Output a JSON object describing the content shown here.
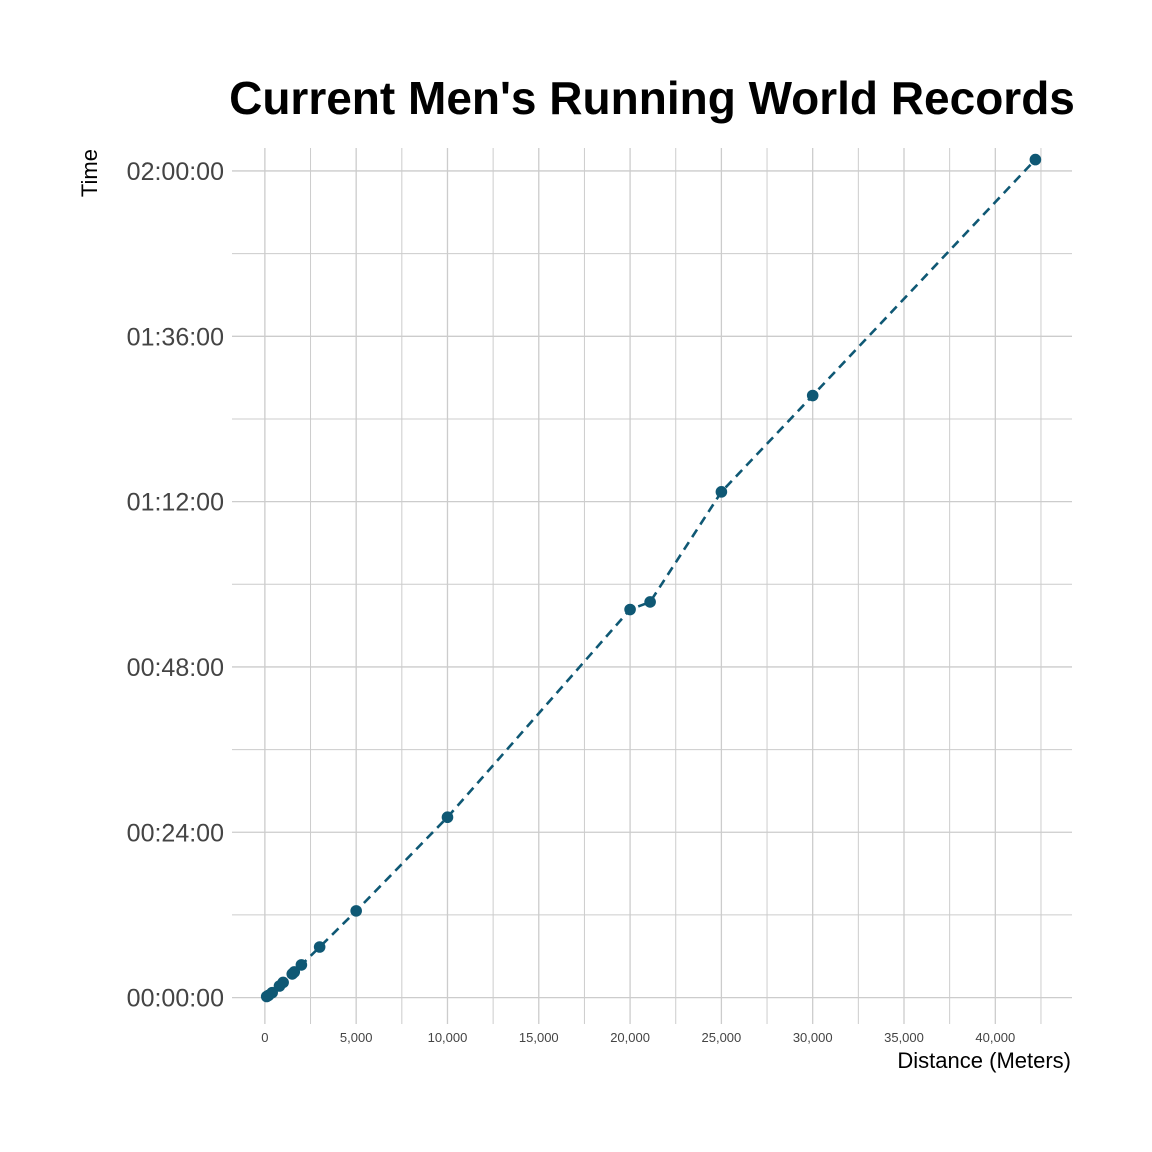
{
  "chart_data": {
    "type": "scatter",
    "title": "Current Men's Running World Records",
    "xlabel": "Distance (Meters)",
    "ylabel": "Time",
    "xlim": [
      -1800,
      44200
    ],
    "ylim": [
      -230,
      7400
    ],
    "x_ticks": [
      0,
      5000,
      10000,
      15000,
      20000,
      25000,
      30000,
      35000,
      40000
    ],
    "x_tick_labels": [
      "0",
      "5,000",
      "10,000",
      "15,000",
      "20,000",
      "25,000",
      "30,000",
      "35,000",
      "40,000"
    ],
    "y_ticks": [
      0,
      1440,
      2880,
      4320,
      5760,
      7200
    ],
    "y_tick_labels": [
      "00:00:00",
      "00:24:00",
      "00:48:00",
      "01:12:00",
      "01:36:00",
      "02:00:00"
    ],
    "grid": true,
    "line_style": "dashed",
    "series": [
      {
        "color": "#0f5874",
        "points": [
          {
            "x": 100,
            "y": 9.58
          },
          {
            "x": 200,
            "y": 19.19
          },
          {
            "x": 400,
            "y": 43.03
          },
          {
            "x": 800,
            "y": 100.91
          },
          {
            "x": 1000,
            "y": 131.96
          },
          {
            "x": 1500,
            "y": 206.0
          },
          {
            "x": 1609,
            "y": 223.13
          },
          {
            "x": 2000,
            "y": 284.79
          },
          {
            "x": 3000,
            "y": 440.67
          },
          {
            "x": 5000,
            "y": 755.36
          },
          {
            "x": 10000,
            "y": 1571.0
          },
          {
            "x": 20000,
            "y": 3380.0
          },
          {
            "x": 21097,
            "y": 3446.0
          },
          {
            "x": 25000,
            "y": 4405.0
          },
          {
            "x": 30000,
            "y": 5244.0
          },
          {
            "x": 42195,
            "y": 7299.0
          }
        ]
      }
    ]
  }
}
